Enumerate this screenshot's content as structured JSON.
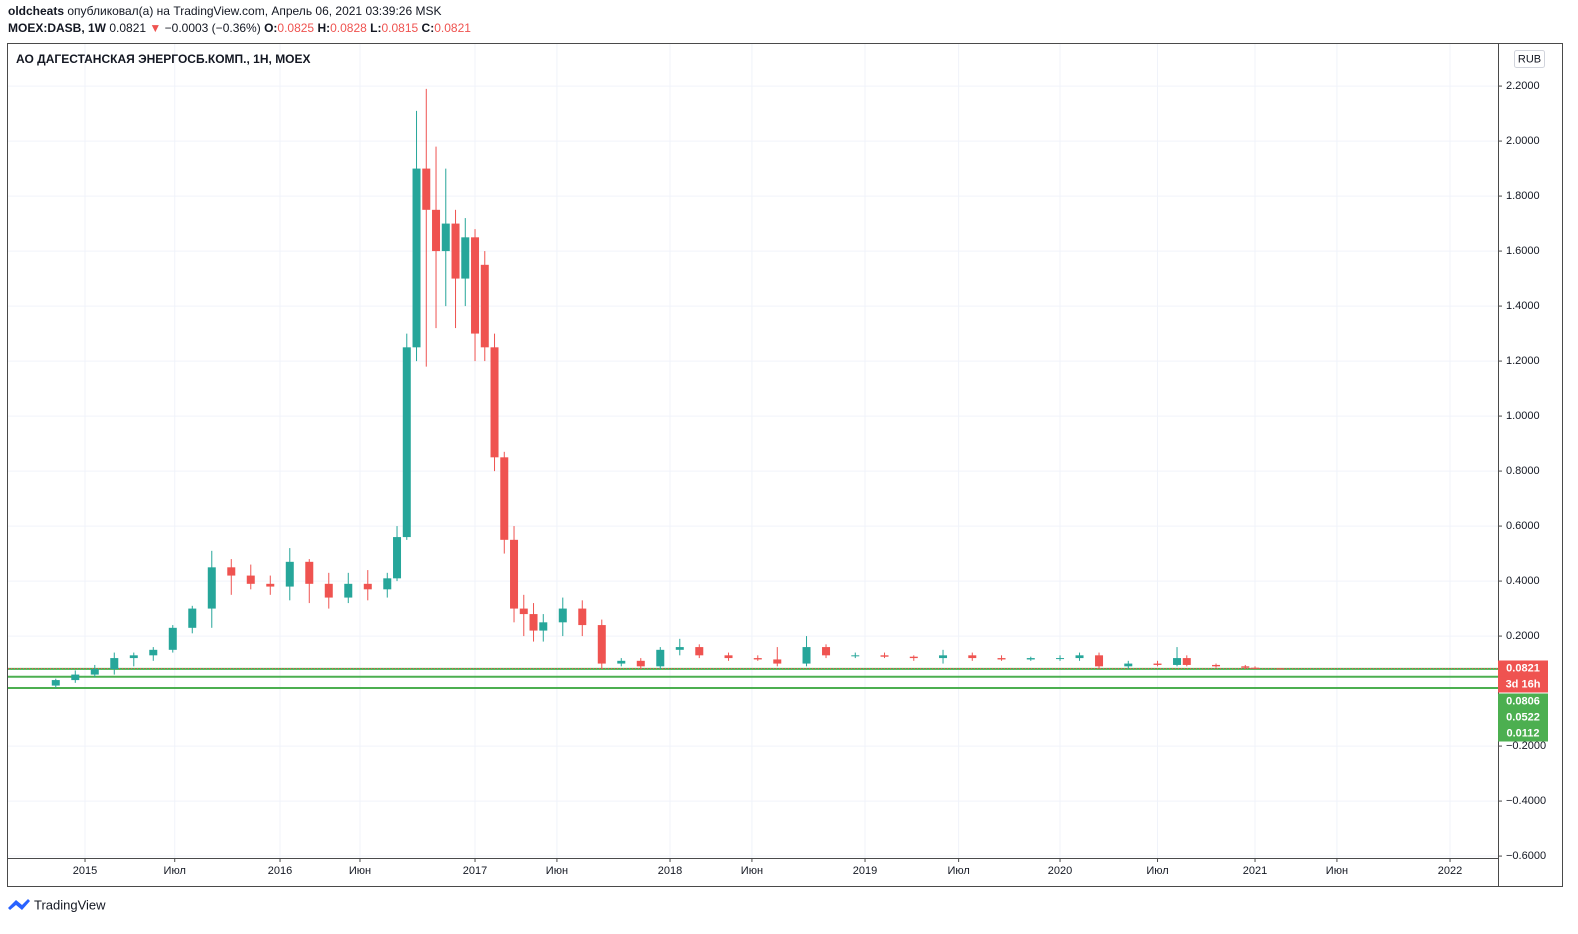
{
  "header": {
    "author": "oldcheats",
    "published": "опубликовал(а) на TradingView.com, Апрель 06, 2021 03:39:26 MSK",
    "symbol": "MOEX:DASB, 1W",
    "price": "0.0821",
    "arrow": "▼",
    "change": "−0.0003 (−0.36%)",
    "o_label": "O:",
    "o": "0.0825",
    "h_label": "H:",
    "h": "0.0828",
    "l_label": "L:",
    "l": "0.0815",
    "c_label": "C:",
    "c": "0.0821"
  },
  "footer": {
    "brand": "TradingView"
  },
  "chart_data": {
    "type": "candlestick",
    "title": "АО ДАГЕСТАНСКАЯ ЭНЕРГОСБ.КОМП., 1Н, MOEX",
    "currency": "RUB",
    "up_color": "#26a69a",
    "down_color": "#ef5350",
    "grid": true,
    "xlim": [
      2014.605,
      2022.246
    ],
    "xticks": [
      2015,
      {
        "value": 2015.46,
        "label": "Июл"
      },
      2016,
      {
        "value": 2016.41,
        "label": "Июн"
      },
      2017,
      {
        "value": 2017.42,
        "label": "Июн"
      },
      2018,
      {
        "value": 2018.42,
        "label": "Июн"
      },
      2019,
      {
        "value": 2019.48,
        "label": "Июл"
      },
      2020,
      {
        "value": 2020.5,
        "label": "Июл"
      },
      2021,
      {
        "value": 2021.42,
        "label": "Июн"
      },
      2022
    ],
    "ylim": [
      -0.607,
      2.353
    ],
    "yticks": [
      {
        "value": 2.2,
        "label": "2.2000"
      },
      {
        "value": 2.0,
        "label": "2.0000"
      },
      {
        "value": 1.8,
        "label": "1.8000"
      },
      {
        "value": 1.6,
        "label": "1.6000"
      },
      {
        "value": 1.4,
        "label": "1.4000"
      },
      {
        "value": 1.2,
        "label": "1.2000"
      },
      {
        "value": 1.0,
        "label": "1.0000"
      },
      {
        "value": 0.8,
        "label": "0.8000"
      },
      {
        "value": 0.6,
        "label": "0.6000"
      },
      {
        "value": 0.4,
        "label": "0.4000"
      },
      {
        "value": 0.2,
        "label": "0.2000"
      },
      {
        "value": -0.2,
        "label": "−0.2000"
      },
      {
        "value": -0.4,
        "label": "−0.4000"
      },
      {
        "value": -0.6,
        "label": "−0.6000"
      }
    ],
    "x": [
      2014.85,
      2014.95,
      2015.05,
      2015.15,
      2015.25,
      2015.35,
      2015.45,
      2015.55,
      2015.65,
      2015.75,
      2015.85,
      2015.95,
      2016.05,
      2016.15,
      2016.25,
      2016.35,
      2016.45,
      2016.55,
      2016.6,
      2016.65,
      2016.7,
      2016.75,
      2016.8,
      2016.85,
      2016.9,
      2016.95,
      2017.0,
      2017.05,
      2017.1,
      2017.15,
      2017.2,
      2017.25,
      2017.3,
      2017.35,
      2017.45,
      2017.55,
      2017.65,
      2017.75,
      2017.85,
      2017.95,
      2018.05,
      2018.15,
      2018.3,
      2018.45,
      2018.55,
      2018.7,
      2018.8,
      2018.95,
      2019.1,
      2019.25,
      2019.4,
      2019.55,
      2019.7,
      2019.85,
      2020.0,
      2020.1,
      2020.2,
      2020.35,
      2020.5,
      2020.6,
      2020.65,
      2020.8,
      2020.95,
      2021.0,
      2021.13
    ],
    "open": [
      0.02,
      0.04,
      0.06,
      0.08,
      0.12,
      0.13,
      0.15,
      0.23,
      0.3,
      0.45,
      0.42,
      0.39,
      0.38,
      0.47,
      0.39,
      0.34,
      0.39,
      0.37,
      0.41,
      0.56,
      1.25,
      1.9,
      1.75,
      1.6,
      1.7,
      1.5,
      1.65,
      1.55,
      1.25,
      0.85,
      0.55,
      0.3,
      0.28,
      0.22,
      0.25,
      0.3,
      0.24,
      0.1,
      0.11,
      0.09,
      0.15,
      0.16,
      0.13,
      0.12,
      0.115,
      0.1,
      0.16,
      0.13,
      0.13,
      0.125,
      0.12,
      0.13,
      0.12,
      0.115,
      0.12,
      0.12,
      0.13,
      0.09,
      0.1,
      0.095,
      0.12,
      0.095,
      0.09,
      0.085,
      0.0825
    ],
    "high": [
      0.045,
      0.075,
      0.095,
      0.14,
      0.14,
      0.16,
      0.24,
      0.31,
      0.51,
      0.48,
      0.46,
      0.42,
      0.52,
      0.48,
      0.43,
      0.43,
      0.44,
      0.43,
      0.6,
      1.3,
      2.11,
      2.19,
      1.98,
      1.9,
      1.75,
      1.72,
      1.68,
      1.6,
      1.3,
      0.87,
      0.6,
      0.35,
      0.32,
      0.28,
      0.34,
      0.33,
      0.26,
      0.12,
      0.12,
      0.16,
      0.19,
      0.17,
      0.14,
      0.13,
      0.16,
      0.2,
      0.17,
      0.14,
      0.14,
      0.13,
      0.15,
      0.14,
      0.13,
      0.125,
      0.13,
      0.14,
      0.14,
      0.11,
      0.11,
      0.16,
      0.13,
      0.1,
      0.095,
      0.09,
      0.0828
    ],
    "low": [
      0.01,
      0.03,
      0.05,
      0.06,
      0.09,
      0.11,
      0.14,
      0.21,
      0.23,
      0.35,
      0.37,
      0.35,
      0.33,
      0.32,
      0.3,
      0.32,
      0.33,
      0.34,
      0.4,
      0.55,
      1.2,
      1.18,
      1.32,
      1.4,
      1.32,
      1.4,
      1.2,
      1.2,
      0.8,
      0.5,
      0.25,
      0.2,
      0.18,
      0.18,
      0.2,
      0.2,
      0.08,
      0.09,
      0.08,
      0.08,
      0.13,
      0.12,
      0.11,
      0.11,
      0.09,
      0.09,
      0.12,
      0.12,
      0.12,
      0.11,
      0.1,
      0.11,
      0.11,
      0.11,
      0.11,
      0.11,
      0.08,
      0.08,
      0.09,
      0.09,
      0.09,
      0.085,
      0.08,
      0.08,
      0.0815
    ],
    "close": [
      0.04,
      0.06,
      0.08,
      0.12,
      0.13,
      0.15,
      0.23,
      0.3,
      0.45,
      0.42,
      0.39,
      0.38,
      0.47,
      0.39,
      0.34,
      0.39,
      0.37,
      0.41,
      0.56,
      1.25,
      1.9,
      1.75,
      1.6,
      1.7,
      1.5,
      1.65,
      1.3,
      1.25,
      0.85,
      0.55,
      0.3,
      0.28,
      0.22,
      0.25,
      0.3,
      0.24,
      0.1,
      0.11,
      0.09,
      0.15,
      0.16,
      0.13,
      0.12,
      0.115,
      0.1,
      0.16,
      0.13,
      0.13,
      0.125,
      0.12,
      0.13,
      0.12,
      0.115,
      0.12,
      0.12,
      0.13,
      0.09,
      0.1,
      0.095,
      0.12,
      0.095,
      0.09,
      0.085,
      0.084,
      0.0821
    ],
    "last_price": 0.0821,
    "countdown": "3d 16h",
    "hlines": [
      0.0806,
      0.0522,
      0.0112
    ],
    "hline_color": "#4caf50"
  }
}
